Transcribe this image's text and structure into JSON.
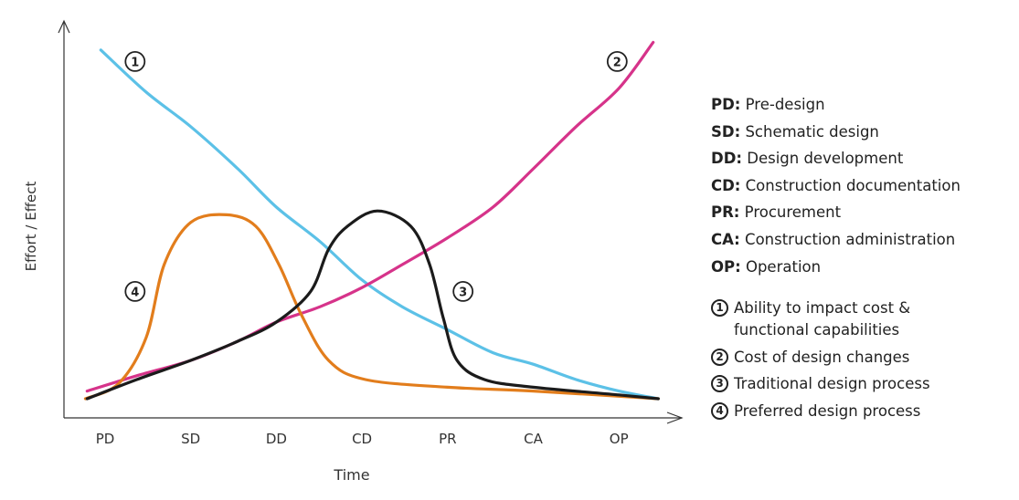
{
  "chart_data": {
    "type": "line",
    "xlabel": "Time",
    "ylabel": "Effort / Effect",
    "categories": [
      "PD",
      "SD",
      "DD",
      "CD",
      "PR",
      "CA",
      "OP"
    ],
    "xlim": [
      -0.5,
      6.8
    ],
    "ylim": [
      0,
      100
    ],
    "grid": false,
    "colors": {
      "1": "#5cc1e7",
      "2": "#d6338a",
      "3": "#1b1b1b",
      "4": "#e27d1c"
    },
    "series": [
      {
        "id": "1",
        "x": [
          -0.05,
          0.48,
          1.0,
          1.55,
          2.0,
          2.51,
          3.0,
          3.47,
          4.0,
          4.53,
          5.0,
          5.5,
          6.0,
          6.46
        ],
        "y": [
          96,
          85,
          76,
          65,
          55,
          46,
          36,
          29,
          23,
          17,
          14,
          10,
          7,
          5
        ]
      },
      {
        "id": "2",
        "x": [
          -0.21,
          0.37,
          1.0,
          1.55,
          2.0,
          2.51,
          3.0,
          3.47,
          4.0,
          4.53,
          5.0,
          5.5,
          6.0,
          6.4
        ],
        "y": [
          7,
          11,
          15,
          20,
          25,
          29,
          34,
          40,
          47,
          55,
          65,
          76,
          86,
          98
        ]
      },
      {
        "id": "3",
        "x": [
          -0.21,
          0.37,
          1.0,
          1.55,
          2.0,
          2.4,
          2.61,
          2.83,
          3.18,
          3.57,
          3.79,
          3.95,
          4.11,
          4.43,
          5.0,
          6.0,
          6.46
        ],
        "y": [
          5,
          10,
          15,
          20,
          25,
          33,
          44,
          50,
          54,
          50,
          40,
          26,
          15,
          10,
          8,
          6,
          5
        ]
      },
      {
        "id": "4",
        "x": [
          -0.23,
          0.16,
          0.48,
          0.69,
          1.0,
          1.42,
          1.76,
          2.03,
          2.29,
          2.61,
          3.04,
          4.0,
          5.0,
          6.46
        ],
        "y": [
          5,
          9,
          21,
          40,
          51,
          53,
          50,
          40,
          27,
          15,
          10,
          8,
          7,
          5
        ]
      }
    ],
    "annotations": [
      {
        "label": "1",
        "x": 0.35,
        "y": 93
      },
      {
        "label": "2",
        "x": 5.98,
        "y": 93
      },
      {
        "label": "3",
        "x": 4.18,
        "y": 33
      },
      {
        "label": "4",
        "x": 0.35,
        "y": 33
      }
    ]
  },
  "legend": {
    "phases": [
      {
        "abbr": "PD:",
        "name": "Pre-design"
      },
      {
        "abbr": "SD:",
        "name": "Schematic design"
      },
      {
        "abbr": "DD:",
        "name": "Design development"
      },
      {
        "abbr": "CD:",
        "name": "Construction documentation"
      },
      {
        "abbr": "PR:",
        "name": "Procurement"
      },
      {
        "abbr": "CA:",
        "name": "Construction administration"
      },
      {
        "abbr": "OP:",
        "name": "Operation"
      }
    ],
    "series": [
      {
        "num": "1",
        "line1": "Ability to impact cost &",
        "line2": "functional capabilities"
      },
      {
        "num": "2",
        "line1": "Cost of design changes"
      },
      {
        "num": "3",
        "line1": "Traditional design process"
      },
      {
        "num": "4",
        "line1": "Preferred design process"
      }
    ]
  }
}
